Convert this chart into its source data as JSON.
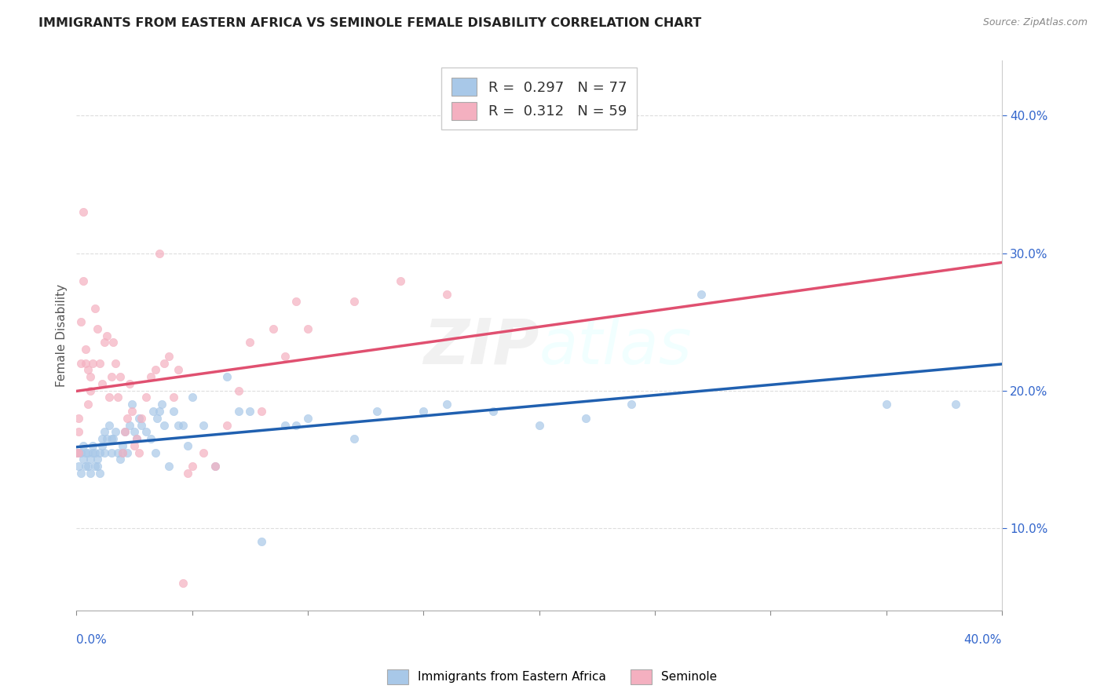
{
  "title": "IMMIGRANTS FROM EASTERN AFRICA VS SEMINOLE FEMALE DISABILITY CORRELATION CHART",
  "source_text": "Source: ZipAtlas.com",
  "ylabel": "Female Disability",
  "xmin": 0.0,
  "xmax": 0.4,
  "ymin": 0.04,
  "ymax": 0.44,
  "watermark": "ZIPatlas",
  "blue_color": "#a8c8e8",
  "pink_color": "#f4b0c0",
  "blue_line_color": "#2060b0",
  "pink_line_color": "#e05070",
  "blue_scatter": [
    [
      0.0,
      0.155
    ],
    [
      0.001,
      0.155
    ],
    [
      0.001,
      0.145
    ],
    [
      0.002,
      0.155
    ],
    [
      0.002,
      0.14
    ],
    [
      0.003,
      0.16
    ],
    [
      0.003,
      0.15
    ],
    [
      0.004,
      0.155
    ],
    [
      0.004,
      0.145
    ],
    [
      0.005,
      0.155
    ],
    [
      0.005,
      0.145
    ],
    [
      0.006,
      0.15
    ],
    [
      0.006,
      0.14
    ],
    [
      0.007,
      0.155
    ],
    [
      0.007,
      0.16
    ],
    [
      0.008,
      0.145
    ],
    [
      0.008,
      0.155
    ],
    [
      0.009,
      0.145
    ],
    [
      0.009,
      0.15
    ],
    [
      0.01,
      0.155
    ],
    [
      0.01,
      0.14
    ],
    [
      0.011,
      0.165
    ],
    [
      0.011,
      0.16
    ],
    [
      0.012,
      0.17
    ],
    [
      0.012,
      0.155
    ],
    [
      0.013,
      0.165
    ],
    [
      0.014,
      0.175
    ],
    [
      0.015,
      0.155
    ],
    [
      0.015,
      0.165
    ],
    [
      0.016,
      0.165
    ],
    [
      0.017,
      0.17
    ],
    [
      0.018,
      0.155
    ],
    [
      0.019,
      0.15
    ],
    [
      0.02,
      0.155
    ],
    [
      0.02,
      0.16
    ],
    [
      0.021,
      0.17
    ],
    [
      0.022,
      0.155
    ],
    [
      0.023,
      0.175
    ],
    [
      0.024,
      0.19
    ],
    [
      0.025,
      0.17
    ],
    [
      0.026,
      0.165
    ],
    [
      0.027,
      0.18
    ],
    [
      0.028,
      0.175
    ],
    [
      0.03,
      0.17
    ],
    [
      0.032,
      0.165
    ],
    [
      0.033,
      0.185
    ],
    [
      0.034,
      0.155
    ],
    [
      0.035,
      0.18
    ],
    [
      0.036,
      0.185
    ],
    [
      0.037,
      0.19
    ],
    [
      0.038,
      0.175
    ],
    [
      0.04,
      0.145
    ],
    [
      0.042,
      0.185
    ],
    [
      0.044,
      0.175
    ],
    [
      0.046,
      0.175
    ],
    [
      0.048,
      0.16
    ],
    [
      0.05,
      0.195
    ],
    [
      0.055,
      0.175
    ],
    [
      0.06,
      0.145
    ],
    [
      0.065,
      0.21
    ],
    [
      0.07,
      0.185
    ],
    [
      0.075,
      0.185
    ],
    [
      0.08,
      0.09
    ],
    [
      0.09,
      0.175
    ],
    [
      0.095,
      0.175
    ],
    [
      0.1,
      0.18
    ],
    [
      0.12,
      0.165
    ],
    [
      0.13,
      0.185
    ],
    [
      0.15,
      0.185
    ],
    [
      0.16,
      0.19
    ],
    [
      0.18,
      0.185
    ],
    [
      0.2,
      0.175
    ],
    [
      0.22,
      0.18
    ],
    [
      0.24,
      0.19
    ],
    [
      0.27,
      0.27
    ],
    [
      0.35,
      0.19
    ],
    [
      0.38,
      0.19
    ]
  ],
  "pink_scatter": [
    [
      0.0,
      0.155
    ],
    [
      0.001,
      0.155
    ],
    [
      0.001,
      0.18
    ],
    [
      0.001,
      0.17
    ],
    [
      0.002,
      0.22
    ],
    [
      0.002,
      0.25
    ],
    [
      0.003,
      0.28
    ],
    [
      0.003,
      0.33
    ],
    [
      0.004,
      0.23
    ],
    [
      0.004,
      0.22
    ],
    [
      0.005,
      0.19
    ],
    [
      0.005,
      0.215
    ],
    [
      0.006,
      0.21
    ],
    [
      0.006,
      0.2
    ],
    [
      0.007,
      0.22
    ],
    [
      0.008,
      0.26
    ],
    [
      0.009,
      0.245
    ],
    [
      0.01,
      0.22
    ],
    [
      0.011,
      0.205
    ],
    [
      0.012,
      0.235
    ],
    [
      0.013,
      0.24
    ],
    [
      0.014,
      0.195
    ],
    [
      0.015,
      0.21
    ],
    [
      0.016,
      0.235
    ],
    [
      0.017,
      0.22
    ],
    [
      0.018,
      0.195
    ],
    [
      0.019,
      0.21
    ],
    [
      0.02,
      0.155
    ],
    [
      0.021,
      0.17
    ],
    [
      0.022,
      0.18
    ],
    [
      0.023,
      0.205
    ],
    [
      0.024,
      0.185
    ],
    [
      0.025,
      0.16
    ],
    [
      0.026,
      0.165
    ],
    [
      0.027,
      0.155
    ],
    [
      0.028,
      0.18
    ],
    [
      0.03,
      0.195
    ],
    [
      0.032,
      0.21
    ],
    [
      0.034,
      0.215
    ],
    [
      0.036,
      0.3
    ],
    [
      0.038,
      0.22
    ],
    [
      0.04,
      0.225
    ],
    [
      0.042,
      0.195
    ],
    [
      0.044,
      0.215
    ],
    [
      0.046,
      0.06
    ],
    [
      0.048,
      0.14
    ],
    [
      0.05,
      0.145
    ],
    [
      0.055,
      0.155
    ],
    [
      0.06,
      0.145
    ],
    [
      0.065,
      0.175
    ],
    [
      0.07,
      0.2
    ],
    [
      0.075,
      0.235
    ],
    [
      0.08,
      0.185
    ],
    [
      0.085,
      0.245
    ],
    [
      0.09,
      0.225
    ],
    [
      0.095,
      0.265
    ],
    [
      0.1,
      0.245
    ],
    [
      0.12,
      0.265
    ],
    [
      0.14,
      0.28
    ],
    [
      0.16,
      0.27
    ]
  ]
}
